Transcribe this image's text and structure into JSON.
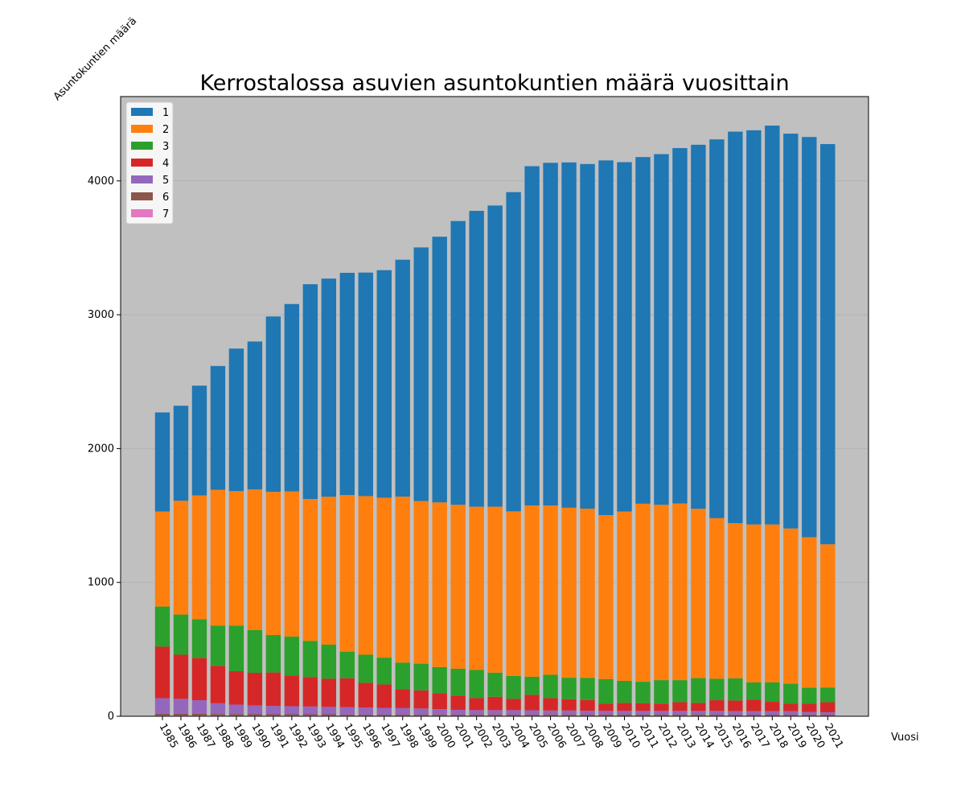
{
  "chart_data": {
    "type": "bar",
    "stacked": true,
    "title": "Kerrostalossa asuvien asuntokuntien määrä vuosittain",
    "xlabel": "Vuosi",
    "ylabel": "Asuntokuntien määrä",
    "ylim": [
      0,
      4630
    ],
    "yticks": [
      0,
      1000,
      2000,
      3000,
      4000
    ],
    "grid": "horizontal",
    "legend_position": "top-left",
    "background": "#c0c0c0",
    "categories": [
      "1985",
      "1986",
      "1987",
      "1988",
      "1989",
      "1990",
      "1991",
      "1992",
      "1993",
      "1994",
      "1995",
      "1996",
      "1997",
      "1998",
      "1999",
      "2000",
      "2001",
      "2002",
      "2003",
      "2004",
      "2005",
      "2006",
      "2007",
      "2008",
      "2009",
      "2010",
      "2011",
      "2012",
      "2013",
      "2014",
      "2015",
      "2016",
      "2017",
      "2018",
      "2019",
      "2020",
      "2021"
    ],
    "series": [
      {
        "name": "7",
        "color": "#e377c2",
        "values": [
          5,
          5,
          5,
          5,
          5,
          5,
          5,
          5,
          5,
          5,
          5,
          5,
          5,
          5,
          5,
          5,
          5,
          5,
          5,
          5,
          5,
          5,
          5,
          5,
          5,
          5,
          5,
          5,
          5,
          5,
          5,
          5,
          5,
          5,
          5,
          5,
          5
        ]
      },
      {
        "name": "6",
        "color": "#8c564b",
        "values": [
          15,
          15,
          15,
          12,
          12,
          10,
          10,
          10,
          10,
          10,
          8,
          8,
          8,
          8,
          8,
          8,
          8,
          8,
          8,
          8,
          8,
          8,
          8,
          8,
          8,
          8,
          8,
          8,
          8,
          8,
          8,
          8,
          8,
          8,
          8,
          8,
          8
        ]
      },
      {
        "name": "5",
        "color": "#9467bd",
        "values": [
          115,
          110,
          100,
          80,
          70,
          65,
          62,
          60,
          58,
          55,
          55,
          52,
          50,
          48,
          45,
          40,
          35,
          33,
          33,
          33,
          32,
          30,
          30,
          28,
          27,
          27,
          27,
          27,
          27,
          27,
          27,
          25,
          25,
          25,
          25,
          20,
          17
        ]
      },
      {
        "name": "4",
        "color": "#d62728",
        "values": [
          385,
          330,
          315,
          280,
          250,
          245,
          250,
          230,
          220,
          210,
          215,
          185,
          175,
          140,
          135,
          120,
          107,
          90,
          100,
          85,
          115,
          92,
          85,
          80,
          53,
          60,
          58,
          55,
          65,
          60,
          80,
          80,
          85,
          70,
          55,
          60,
          75
        ]
      },
      {
        "name": "3",
        "color": "#2ca02c",
        "values": [
          300,
          300,
          290,
          300,
          340,
          320,
          280,
          290,
          270,
          255,
          200,
          210,
          200,
          200,
          200,
          195,
          200,
          210,
          180,
          170,
          135,
          175,
          160,
          165,
          185,
          165,
          160,
          175,
          165,
          185,
          160,
          165,
          130,
          145,
          150,
          120,
          110
        ]
      },
      {
        "name": "2",
        "color": "#ff7f0e",
        "values": [
          710,
          850,
          925,
          1015,
          1005,
          1050,
          1070,
          1085,
          1060,
          1105,
          1170,
          1185,
          1195,
          1240,
          1215,
          1230,
          1225,
          1220,
          1240,
          1230,
          1280,
          1265,
          1270,
          1265,
          1225,
          1265,
          1330,
          1310,
          1320,
          1265,
          1200,
          1160,
          1180,
          1180,
          1160,
          1125,
          1070
        ]
      },
      {
        "name": "1",
        "color": "#1f77b4",
        "values": [
          740,
          710,
          820,
          925,
          1065,
          1105,
          1310,
          1400,
          1605,
          1630,
          1660,
          1670,
          1700,
          1770,
          1895,
          1985,
          2120,
          2210,
          2250,
          2385,
          2535,
          2560,
          2580,
          2575,
          2650,
          2610,
          2590,
          2620,
          2655,
          2720,
          2830,
          2925,
          2945,
          2980,
          2950,
          2990,
          2990
        ]
      }
    ]
  }
}
